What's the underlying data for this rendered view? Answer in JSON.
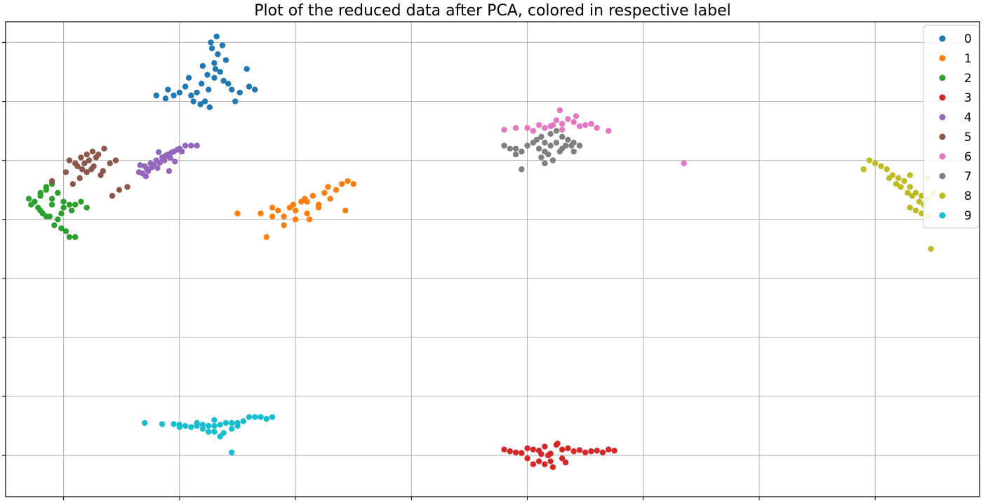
{
  "chart_data": {
    "type": "scatter",
    "title": "Plot of the reduced data after PCA, colored in respective label",
    "xlabel": "",
    "ylabel": "",
    "tick_labels_visible": false,
    "grid": true,
    "legend_position": "top-right",
    "xlim": [
      -0.5,
      7.9
    ],
    "ylim": [
      -4.7,
      3.35
    ],
    "series": [
      {
        "name": "0",
        "color": "#1f77b4",
        "x": [
          1.25,
          1.15,
          1.05,
          1.3,
          1.35,
          1.4,
          1.2,
          1.1,
          1.28,
          1.32,
          1.22,
          1.18,
          1.38,
          1.45,
          1.52,
          1.6,
          0.95,
          0.88,
          0.8,
          0.9,
          1.0,
          1.58,
          1.65,
          1.48,
          1.33,
          1.27,
          1.37,
          1.24,
          1.42,
          1.31,
          1.19,
          1.26,
          1.3,
          1.12,
          1.08
        ],
        "y": [
          2.2,
          2.15,
          2.25,
          2.4,
          2.5,
          2.7,
          2.6,
          2.1,
          2.9,
          3.1,
          2.0,
          1.95,
          2.35,
          2.2,
          2.15,
          2.25,
          2.1,
          2.05,
          2.1,
          2.2,
          2.15,
          2.55,
          2.2,
          2.0,
          2.8,
          3.0,
          2.95,
          2.45,
          2.3,
          2.55,
          2.3,
          1.9,
          2.65,
          2.0,
          2.4
        ]
      },
      {
        "name": "1",
        "color": "#ff7f0e",
        "x": [
          1.5,
          1.7,
          1.8,
          1.9,
          2.0,
          2.1,
          2.2,
          2.3,
          2.4,
          1.85,
          1.95,
          2.05,
          2.15,
          2.25,
          2.35,
          1.9,
          1.75,
          2.0,
          2.1,
          2.2,
          1.8,
          1.98,
          2.08,
          2.28,
          2.45,
          2.5,
          2.43,
          2.12
        ],
        "y": [
          0.1,
          0.1,
          0.2,
          0.05,
          0.15,
          0.3,
          0.25,
          0.35,
          0.6,
          0.15,
          0.2,
          0.3,
          0.4,
          0.45,
          0.5,
          -0.1,
          -0.3,
          0.0,
          0.1,
          0.2,
          0.05,
          0.25,
          0.35,
          0.55,
          0.65,
          0.6,
          0.15,
          0.0
        ]
      },
      {
        "name": "2",
        "color": "#2ca02c",
        "x": [
          -0.3,
          -0.25,
          -0.2,
          -0.15,
          -0.1,
          -0.05,
          0.0,
          0.05,
          -0.22,
          -0.18,
          -0.12,
          -0.08,
          -0.28,
          -0.15,
          -0.1,
          0.0,
          0.1,
          0.2,
          0.15,
          -0.05,
          -0.02,
          0.02,
          0.05,
          0.1,
          -0.2,
          -0.1,
          -0.2,
          -0.15,
          -0.02,
          0.07
        ],
        "y": [
          0.35,
          0.3,
          0.4,
          0.5,
          0.35,
          0.45,
          0.3,
          0.25,
          0.2,
          0.1,
          0.05,
          -0.1,
          0.25,
          0.55,
          0.6,
          0.2,
          0.25,
          0.2,
          0.3,
          0.0,
          -0.15,
          -0.2,
          -0.3,
          -0.3,
          0.15,
          0.25,
          0.45,
          0.05,
          0.1,
          0.15
        ]
      },
      {
        "name": "3",
        "color": "#d62728",
        "x": [
          3.8,
          3.9,
          4.0,
          4.1,
          4.2,
          4.3,
          4.4,
          4.5,
          4.6,
          4.7,
          4.75,
          3.85,
          3.95,
          4.05,
          4.15,
          4.25,
          4.35,
          4.45,
          4.55,
          4.65,
          4.0,
          4.1,
          4.2,
          4.3,
          4.05,
          4.15,
          4.22,
          4.33,
          4.12,
          4.26,
          4.18
        ],
        "y": [
          -3.9,
          -3.95,
          -3.88,
          -3.92,
          -3.97,
          -3.9,
          -3.93,
          -3.95,
          -3.92,
          -3.9,
          -3.92,
          -3.93,
          -3.96,
          -3.9,
          -3.85,
          -3.82,
          -3.88,
          -3.91,
          -3.93,
          -3.95,
          -4.05,
          -4.1,
          -4.1,
          -4.05,
          -4.15,
          -4.15,
          -4.2,
          -4.12,
          -3.98,
          -3.8,
          -4.0
        ]
      },
      {
        "name": "4",
        "color": "#9467bd",
        "x": [
          0.65,
          0.7,
          0.75,
          0.8,
          0.85,
          0.9,
          0.95,
          1.0,
          1.05,
          1.1,
          1.15,
          0.72,
          0.78,
          0.88,
          0.93,
          0.98,
          0.68,
          0.73,
          0.83,
          0.76,
          0.86,
          0.92,
          1.02,
          0.66,
          0.81,
          0.96,
          0.71,
          0.91,
          0.82,
          0.87
        ],
        "y": [
          0.8,
          0.9,
          0.95,
          1.0,
          1.05,
          1.1,
          1.15,
          1.2,
          1.25,
          1.25,
          1.25,
          0.85,
          0.92,
          1.08,
          1.13,
          1.18,
          0.78,
          0.82,
          0.96,
          0.88,
          1.02,
          1.04,
          1.15,
          0.92,
          0.87,
          0.98,
          0.73,
          0.82,
          1.14,
          1.0
        ]
      },
      {
        "name": "5",
        "color": "#8c564b",
        "x": [
          0.05,
          0.1,
          0.15,
          0.2,
          0.25,
          0.3,
          0.35,
          0.12,
          0.18,
          0.22,
          0.28,
          0.08,
          0.24,
          0.32,
          0.16,
          0.26,
          0.2,
          0.14,
          0.4,
          0.48,
          0.55,
          0.42,
          0.02,
          -0.1,
          0.45,
          0.34
        ],
        "y": [
          1.0,
          0.95,
          1.05,
          1.1,
          1.15,
          1.1,
          1.2,
          0.9,
          0.95,
          1.0,
          1.05,
          0.6,
          0.85,
          0.75,
          0.85,
          0.9,
          0.8,
          0.7,
          0.95,
          0.5,
          0.55,
          0.4,
          0.8,
          0.65,
          1.0,
          0.82
        ]
      },
      {
        "name": "6",
        "color": "#e377c2",
        "x": [
          4.0,
          4.1,
          4.2,
          4.3,
          4.4,
          4.5,
          4.6,
          4.7,
          4.35,
          4.25,
          4.15,
          4.45,
          4.55,
          4.05,
          4.3,
          4.28,
          4.42,
          3.8,
          3.9,
          4.22,
          5.35
        ],
        "y": [
          1.55,
          1.6,
          1.58,
          1.62,
          1.65,
          1.6,
          1.55,
          1.5,
          1.7,
          1.68,
          1.55,
          1.58,
          1.62,
          1.5,
          1.52,
          1.85,
          1.75,
          1.52,
          1.55,
          1.6,
          0.95
        ]
      },
      {
        "name": "7",
        "color": "#7f7f7f",
        "x": [
          4.05,
          4.1,
          4.15,
          4.2,
          4.25,
          4.3,
          4.35,
          4.4,
          4.12,
          4.18,
          4.22,
          4.28,
          4.33,
          4.38,
          4.2,
          4.25,
          4.15,
          4.3,
          4.4,
          4.45,
          3.8,
          3.85,
          3.9,
          3.95,
          4.0,
          4.08,
          4.12,
          3.9,
          3.95,
          4.15
        ],
        "y": [
          1.3,
          1.2,
          1.15,
          1.25,
          1.3,
          1.4,
          1.35,
          1.3,
          1.05,
          1.1,
          1.0,
          1.15,
          1.25,
          1.25,
          1.45,
          1.5,
          1.3,
          1.2,
          1.15,
          1.25,
          1.25,
          1.2,
          1.2,
          1.15,
          1.25,
          1.35,
          1.4,
          1.1,
          0.85,
          0.95
        ]
      },
      {
        "name": "8",
        "color": "#bcbd22",
        "x": [
          7.0,
          7.1,
          7.15,
          7.2,
          7.25,
          7.3,
          7.35,
          7.4,
          7.45,
          7.12,
          7.18,
          7.22,
          7.28,
          7.32,
          7.38,
          7.42,
          7.3,
          7.35,
          7.4,
          7.45,
          6.95,
          6.9,
          7.05,
          7.3,
          7.45,
          7.5,
          7.48
        ],
        "y": [
          0.95,
          0.85,
          0.75,
          0.7,
          0.65,
          0.55,
          0.45,
          0.4,
          0.35,
          0.7,
          0.6,
          0.55,
          0.45,
          0.4,
          0.3,
          0.25,
          0.2,
          0.15,
          0.1,
          0.05,
          1.0,
          0.85,
          0.9,
          0.75,
          0.7,
          0.45,
          -0.5
        ]
      },
      {
        "name": "9",
        "color": "#17becf",
        "x": [
          0.7,
          0.85,
          0.95,
          1.0,
          1.05,
          1.1,
          1.15,
          1.2,
          1.25,
          1.3,
          1.35,
          1.4,
          1.45,
          1.5,
          1.55,
          1.6,
          1.65,
          1.7,
          1.75,
          1.8,
          1.2,
          1.25,
          1.3,
          1.38,
          1.45,
          1.5,
          1.45,
          1.35,
          1.3,
          1.15,
          1.0
        ],
        "y": [
          -3.45,
          -3.47,
          -3.47,
          -3.48,
          -3.5,
          -3.52,
          -3.5,
          -3.48,
          -3.5,
          -3.5,
          -3.48,
          -3.45,
          -3.45,
          -3.45,
          -3.42,
          -3.35,
          -3.35,
          -3.35,
          -3.38,
          -3.35,
          -3.55,
          -3.6,
          -3.6,
          -3.62,
          -3.55,
          -3.5,
          -3.95,
          -3.68,
          -3.4,
          -3.45,
          -3.52
        ]
      }
    ]
  }
}
